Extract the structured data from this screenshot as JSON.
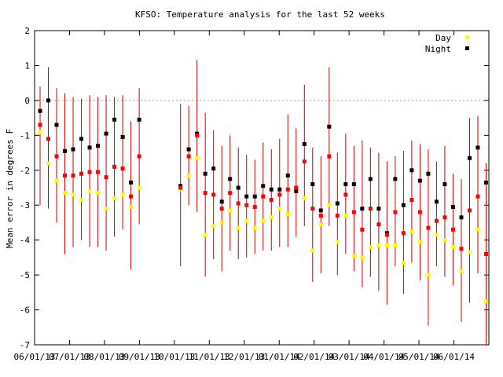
{
  "chart_data": {
    "type": "scatter",
    "title": "KFSO: Temperature analysis for the last 52 weeks",
    "ylabel": "Mean error in degrees F",
    "xlabel": "",
    "ylim": [
      -7,
      2
    ],
    "yticks": [
      2,
      1,
      0,
      -1,
      -2,
      -3,
      -4,
      -5,
      -6,
      -7
    ],
    "xtick_labels": [
      "06/01/13",
      "07/01/13",
      "08/01/13",
      "09/01/13",
      "10/01/13",
      "11/01/13",
      "12/01/13",
      "01/01/14",
      "02/01/14",
      "03/01/14",
      "04/01/14",
      "05/01/14",
      "06/01/14"
    ],
    "zero_line": true,
    "legend_position": "top-right",
    "colors": {
      "day": "#ffff00",
      "night": "#000000",
      "mean": "#ff0000",
      "errorbar": "#cc0000",
      "zero": "#999999"
    },
    "weeks": [
      {
        "day": -0.9,
        "night": -0.3,
        "mean": -0.7,
        "lo": -3.0,
        "hi": 0.4
      },
      {
        "day": -1.8,
        "night": 0.0,
        "mean": -1.1,
        "lo": -3.1,
        "hi": 0.95
      },
      {
        "day": -2.3,
        "night": -0.7,
        "mean": -1.6,
        "lo": -3.5,
        "hi": 0.35
      },
      {
        "day": -2.65,
        "night": -1.45,
        "mean": -2.15,
        "lo": -4.4,
        "hi": 0.2
      },
      {
        "day": -2.7,
        "night": -1.4,
        "mean": -2.15,
        "lo": -4.2,
        "hi": 0.1
      },
      {
        "day": -2.85,
        "night": -1.1,
        "mean": -2.1,
        "lo": -4.0,
        "hi": 0.05
      },
      {
        "day": -2.6,
        "night": -1.35,
        "mean": -2.05,
        "lo": -4.2,
        "hi": 0.15
      },
      {
        "day": -2.65,
        "night": -1.3,
        "mean": -2.05,
        "lo": -4.2,
        "hi": 0.1
      },
      {
        "day": -3.1,
        "night": -0.95,
        "mean": -2.2,
        "lo": -4.3,
        "hi": 0.15
      },
      {
        "day": -2.8,
        "night": -0.55,
        "mean": -1.9,
        "lo": -3.9,
        "hi": 0.1
      },
      {
        "day": -2.7,
        "night": -1.05,
        "mean": -1.95,
        "lo": -3.7,
        "hi": 0.15
      },
      {
        "day": -3.05,
        "night": -2.35,
        "mean": -2.75,
        "lo": -4.85,
        "hi": -0.6
      },
      {
        "day": -2.5,
        "night": -0.55,
        "mean": -1.6,
        "lo": -3.55,
        "hi": 0.35
      },
      null,
      null,
      null,
      null,
      {
        "day": -2.55,
        "night": -2.45,
        "mean": -2.5,
        "lo": -4.75,
        "hi": -0.1
      },
      {
        "day": -2.15,
        "night": -1.4,
        "mean": -1.6,
        "lo": -3.0,
        "hi": -0.15
      },
      {
        "day": -1.65,
        "night": -0.95,
        "mean": -1.0,
        "lo": -3.2,
        "hi": 1.15
      },
      {
        "day": -3.85,
        "night": -2.1,
        "mean": -2.65,
        "lo": -5.05,
        "hi": -0.35
      },
      {
        "day": -3.6,
        "night": -1.95,
        "mean": -2.7,
        "lo": -4.55,
        "hi": -0.85
      },
      {
        "day": -3.5,
        "night": -2.9,
        "mean": -3.1,
        "lo": -4.9,
        "hi": -1.3
      },
      {
        "day": -3.15,
        "night": -2.25,
        "mean": -2.65,
        "lo": -4.3,
        "hi": -1.0
      },
      {
        "day": -3.65,
        "night": -2.5,
        "mean": -2.95,
        "lo": -4.55,
        "hi": -1.35
      },
      {
        "day": -3.45,
        "night": -2.75,
        "mean": -3.0,
        "lo": -4.5,
        "hi": -1.55
      },
      {
        "day": -3.65,
        "night": -2.75,
        "mean": -3.05,
        "lo": -4.4,
        "hi": -1.7
      },
      {
        "day": -3.45,
        "night": -2.45,
        "mean": -2.75,
        "lo": -4.3,
        "hi": -1.2
      },
      {
        "day": -3.35,
        "night": -2.55,
        "mean": -2.85,
        "lo": -4.3,
        "hi": -1.4
      },
      {
        "day": -3.1,
        "night": -2.55,
        "mean": -2.7,
        "lo": -4.2,
        "hi": -1.1
      },
      {
        "day": -3.25,
        "night": -2.15,
        "mean": -2.55,
        "lo": -4.2,
        "hi": -0.4
      },
      {
        "day": -2.55,
        "night": -2.6,
        "mean": -2.5,
        "lo": -3.9,
        "hi": -0.8
      },
      {
        "day": -2.8,
        "night": -1.25,
        "mean": -1.75,
        "lo": -3.6,
        "hi": 0.45
      },
      {
        "day": -4.3,
        "night": -2.4,
        "mean": -3.1,
        "lo": -5.2,
        "hi": -1.35
      },
      {
        "day": -3.55,
        "night": -3.15,
        "mean": -3.3,
        "lo": -4.95,
        "hi": -1.6
      },
      {
        "day": -3.0,
        "night": -0.75,
        "mean": -1.6,
        "lo": -3.6,
        "hi": 0.95
      },
      {
        "day": -4.05,
        "night": -2.95,
        "mean": -3.3,
        "lo": -5.0,
        "hi": -1.5
      },
      {
        "day": -3.3,
        "night": -2.4,
        "mean": -2.7,
        "lo": -4.4,
        "hi": -0.95
      },
      {
        "day": -4.45,
        "night": -2.4,
        "mean": -3.2,
        "lo": -4.9,
        "hi": -1.3
      },
      {
        "day": -4.5,
        "night": -3.1,
        "mean": -3.7,
        "lo": -5.35,
        "hi": -1.15
      },
      {
        "day": -4.2,
        "night": -2.25,
        "mean": -3.1,
        "lo": -5.05,
        "hi": -1.35
      },
      {
        "day": -4.15,
        "night": -3.1,
        "mean": -3.55,
        "lo": -5.45,
        "hi": -1.5
      },
      {
        "day": -4.15,
        "night": -3.8,
        "mean": -3.85,
        "lo": -5.85,
        "hi": -1.75
      },
      {
        "day": -4.15,
        "night": -2.25,
        "mean": -3.2,
        "lo": -4.75,
        "hi": -1.6
      },
      {
        "day": -4.65,
        "night": -3.0,
        "mean": -3.8,
        "lo": -5.55,
        "hi": -1.45
      },
      {
        "day": -3.75,
        "night": -2.0,
        "mean": -2.85,
        "lo": -4.65,
        "hi": -1.15
      },
      {
        "day": -4.05,
        "night": -2.3,
        "mean": -3.2,
        "lo": -5.15,
        "hi": -1.25
      },
      {
        "day": -5.0,
        "night": -2.1,
        "mean": -3.65,
        "lo": -6.45,
        "hi": -1.4
      },
      {
        "day": -3.85,
        "night": -2.9,
        "mean": -3.45,
        "lo": -4.75,
        "hi": -1.75
      },
      {
        "day": -4.0,
        "night": -2.4,
        "mean": -3.35,
        "lo": -5.05,
        "hi": -1.3
      },
      {
        "day": -4.2,
        "night": -3.05,
        "mean": -3.7,
        "lo": -5.3,
        "hi": -2.1
      },
      {
        "day": -4.9,
        "night": -3.35,
        "mean": -4.25,
        "lo": -6.35,
        "hi": -2.25
      },
      {
        "day": -4.35,
        "night": -1.65,
        "mean": -3.15,
        "lo": -5.8,
        "hi": -0.5
      },
      {
        "day": -3.7,
        "night": -1.35,
        "mean": -2.75,
        "lo": -4.95,
        "hi": -0.45
      },
      {
        "day": -5.75,
        "night": -2.35,
        "mean": -4.4,
        "lo": -7.0,
        "hi": -1.8
      }
    ]
  },
  "legend": [
    {
      "label": "Day",
      "color": "#ffff00"
    },
    {
      "label": "Night",
      "color": "#000000"
    }
  ]
}
